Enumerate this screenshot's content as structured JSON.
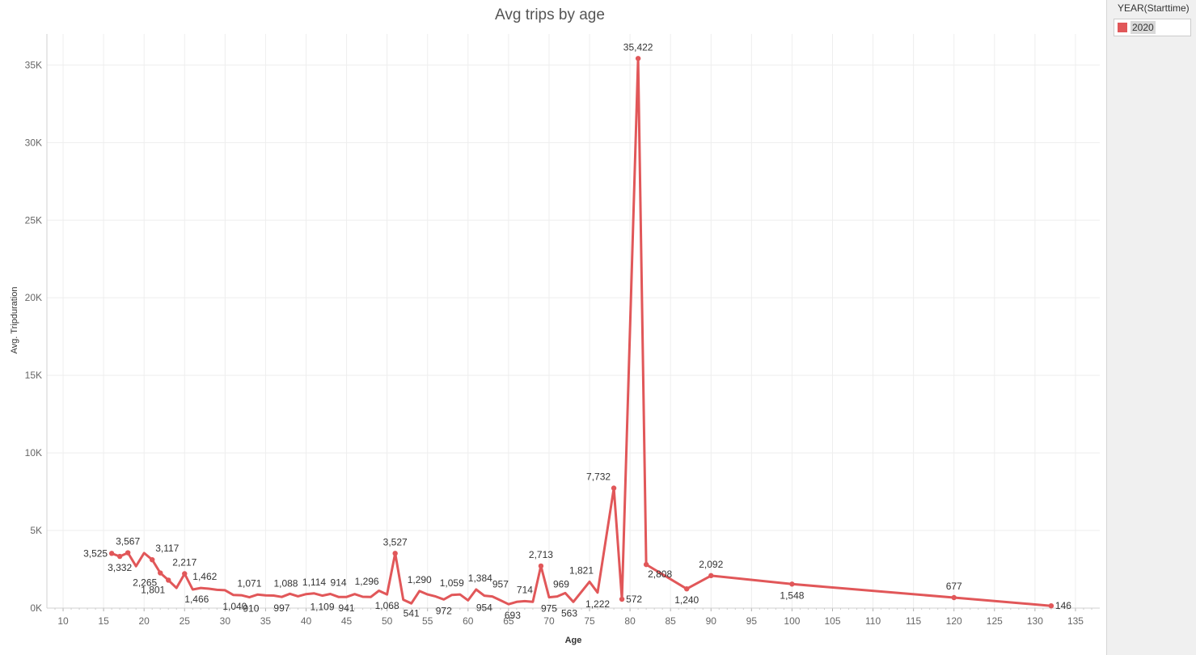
{
  "chart_data": {
    "type": "line",
    "title": "Avg trips by age",
    "xlabel": "Age",
    "ylabel": "Avg. Tripduration",
    "xlim": [
      8,
      138
    ],
    "ylim": [
      0,
      37000
    ],
    "x_ticks": [
      10,
      15,
      20,
      25,
      30,
      35,
      40,
      45,
      50,
      55,
      60,
      65,
      70,
      75,
      80,
      85,
      90,
      95,
      100,
      105,
      110,
      115,
      120,
      125,
      130,
      135
    ],
    "y_ticks": [
      {
        "value": 0,
        "label": "0K"
      },
      {
        "value": 5000,
        "label": "5K"
      },
      {
        "value": 10000,
        "label": "10K"
      },
      {
        "value": 15000,
        "label": "15K"
      },
      {
        "value": 20000,
        "label": "20K"
      },
      {
        "value": 25000,
        "label": "25K"
      },
      {
        "value": 30000,
        "label": "30K"
      },
      {
        "value": 35000,
        "label": "35K"
      }
    ],
    "grid": true,
    "legend_position": "right",
    "color": "#e15759",
    "series": [
      {
        "name": "2020",
        "points": [
          {
            "x": 16,
            "y": 3525,
            "label": "3,525",
            "pos": "left"
          },
          {
            "x": 17,
            "y": 3332,
            "label": "3,332",
            "pos": "below"
          },
          {
            "x": 18,
            "y": 3567,
            "label": "3,567",
            "pos": "above"
          },
          {
            "x": 19,
            "y": 2700
          },
          {
            "x": 20,
            "y": 3550
          },
          {
            "x": 21,
            "y": 3117,
            "label": "3,117",
            "pos": "above-right"
          },
          {
            "x": 22,
            "y": 2265,
            "label": "2,265",
            "pos": "below-left"
          },
          {
            "x": 23,
            "y": 1801,
            "label": "1,801",
            "pos": "below-left"
          },
          {
            "x": 24,
            "y": 1300
          },
          {
            "x": 25,
            "y": 2217,
            "label": "2,217",
            "pos": "above"
          },
          {
            "x": 26,
            "y": 1200
          },
          {
            "x": 27,
            "y": 1300
          },
          {
            "x": 28,
            "y": 1250
          },
          {
            "x": 29,
            "y": 1180
          },
          {
            "x": 30,
            "y": 1150
          },
          {
            "x": 31,
            "y": 850
          },
          {
            "x": 32,
            "y": 830
          },
          {
            "x": 33,
            "y": 700
          },
          {
            "x": 34,
            "y": 870
          },
          {
            "x": 35,
            "y": 820
          },
          {
            "x": 36,
            "y": 810
          },
          {
            "x": 37,
            "y": 720
          },
          {
            "x": 38,
            "y": 920
          },
          {
            "x": 39,
            "y": 760
          },
          {
            "x": 40,
            "y": 900
          },
          {
            "x": 41,
            "y": 950
          },
          {
            "x": 42,
            "y": 800
          },
          {
            "x": 43,
            "y": 914
          },
          {
            "x": 44,
            "y": 720
          },
          {
            "x": 45,
            "y": 720
          },
          {
            "x": 46,
            "y": 900
          },
          {
            "x": 47,
            "y": 730
          },
          {
            "x": 48,
            "y": 720
          },
          {
            "x": 49,
            "y": 1120
          },
          {
            "x": 50,
            "y": 880
          },
          {
            "x": 51,
            "y": 3527,
            "label": "3,527",
            "pos": "above"
          },
          {
            "x": 52,
            "y": 541
          },
          {
            "x": 53,
            "y": 300
          },
          {
            "x": 54,
            "y": 1100
          },
          {
            "x": 55,
            "y": 880
          },
          {
            "x": 56,
            "y": 750
          },
          {
            "x": 57,
            "y": 560
          },
          {
            "x": 58,
            "y": 850
          },
          {
            "x": 59,
            "y": 880
          },
          {
            "x": 60,
            "y": 500
          },
          {
            "x": 61,
            "y": 1200
          },
          {
            "x": 62,
            "y": 800
          },
          {
            "x": 63,
            "y": 750
          },
          {
            "x": 64,
            "y": 500
          },
          {
            "x": 65,
            "y": 250
          },
          {
            "x": 66,
            "y": 400
          },
          {
            "x": 67,
            "y": 450
          },
          {
            "x": 68,
            "y": 400
          },
          {
            "x": 69,
            "y": 2713,
            "label": "2,713",
            "pos": "above"
          },
          {
            "x": 70,
            "y": 700
          },
          {
            "x": 71,
            "y": 750
          },
          {
            "x": 72,
            "y": 969
          },
          {
            "x": 73,
            "y": 400
          },
          {
            "x": 75,
            "y": 1700
          },
          {
            "x": 76,
            "y": 1000
          },
          {
            "x": 78,
            "y": 7732,
            "label": "7,732",
            "pos": "above-left"
          },
          {
            "x": 79,
            "y": 572,
            "label": "572",
            "pos": "right"
          },
          {
            "x": 81,
            "y": 35422,
            "label": "35,422",
            "pos": "above"
          },
          {
            "x": 82,
            "y": 2808,
            "label": "2,808",
            "pos": "below-right"
          },
          {
            "x": 87,
            "y": 1240,
            "label": "1,240",
            "pos": "below"
          },
          {
            "x": 90,
            "y": 2092,
            "label": "2,092",
            "pos": "above"
          },
          {
            "x": 100,
            "y": 1548,
            "label": "1,548",
            "pos": "below"
          },
          {
            "x": 120,
            "y": 677,
            "label": "677",
            "pos": "above"
          },
          {
            "x": 132,
            "y": 146,
            "label": "146",
            "pos": "right"
          }
        ],
        "extra_labels": [
          {
            "x": 26.5,
            "y": 1300,
            "label": "1,466",
            "pos": "below"
          },
          {
            "x": 27.5,
            "y": 1300,
            "label": "1,462",
            "pos": "above"
          },
          {
            "x": 31.2,
            "y": 830,
            "label": "1,040",
            "pos": "below"
          },
          {
            "x": 33.2,
            "y": 700,
            "label": "910",
            "pos": "below"
          },
          {
            "x": 33,
            "y": 870,
            "label": "1,071",
            "pos": "above"
          },
          {
            "x": 37,
            "y": 720,
            "label": "997",
            "pos": "below"
          },
          {
            "x": 37.5,
            "y": 870,
            "label": "1,088",
            "pos": "above"
          },
          {
            "x": 41,
            "y": 950,
            "label": "1,114",
            "pos": "above"
          },
          {
            "x": 42,
            "y": 800,
            "label": "1,109",
            "pos": "below"
          },
          {
            "x": 44,
            "y": 914,
            "label": "914",
            "pos": "above"
          },
          {
            "x": 45,
            "y": 720,
            "label": "941",
            "pos": "below"
          },
          {
            "x": 47.5,
            "y": 1000,
            "label": "1,296",
            "pos": "above"
          },
          {
            "x": 50,
            "y": 880,
            "label": "1,068",
            "pos": "below"
          },
          {
            "x": 53,
            "y": 400,
            "label": "541",
            "pos": "below"
          },
          {
            "x": 54,
            "y": 1100,
            "label": "1,290",
            "pos": "above"
          },
          {
            "x": 57,
            "y": 560,
            "label": "972",
            "pos": "below"
          },
          {
            "x": 58,
            "y": 880,
            "label": "1,059",
            "pos": "above"
          },
          {
            "x": 61.5,
            "y": 1200,
            "label": "1,384",
            "pos": "above"
          },
          {
            "x": 62,
            "y": 750,
            "label": "954",
            "pos": "below"
          },
          {
            "x": 64,
            "y": 800,
            "label": "957",
            "pos": "above"
          },
          {
            "x": 65.5,
            "y": 250,
            "label": "693",
            "pos": "below"
          },
          {
            "x": 67,
            "y": 450,
            "label": "714",
            "pos": "above"
          },
          {
            "x": 70,
            "y": 700,
            "label": "975",
            "pos": "below"
          },
          {
            "x": 71.5,
            "y": 800,
            "label": "969",
            "pos": "above"
          },
          {
            "x": 72.5,
            "y": 400,
            "label": "563",
            "pos": "below"
          },
          {
            "x": 74,
            "y": 1700,
            "label": "1,821",
            "pos": "above"
          },
          {
            "x": 76,
            "y": 1000,
            "label": "1,222",
            "pos": "below"
          }
        ]
      }
    ]
  },
  "legend": {
    "title": "YEAR(Starttime)",
    "items": [
      {
        "label": "2020",
        "color": "#e15759"
      }
    ]
  }
}
